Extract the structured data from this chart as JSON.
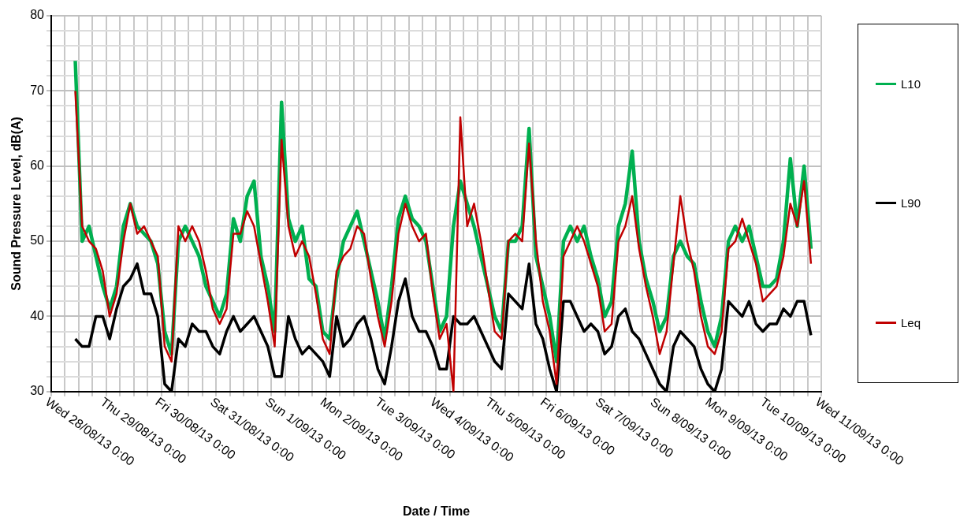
{
  "chart_data": {
    "type": "line",
    "xlabel": "Date / Time",
    "ylabel": "Sound Pressure Level, dB(A)",
    "legend": "right",
    "grid": true,
    "marker": "none",
    "line_style": "solid",
    "xlim": [
      "--08-28T00:00",
      "--09-11T00:00"
    ],
    "xticks": [
      {
        "value": "--08-28T00:00",
        "label": "Wed 28/08/13 0:00"
      },
      {
        "value": "--08-28T06:00",
        "label": null
      },
      {
        "value": "--08-28T12:00",
        "label": null
      },
      {
        "value": "--08-28T18:00",
        "label": null
      },
      {
        "value": "--08-29T00:00",
        "label": "Thu 29/08/13 0:00"
      },
      {
        "value": "--08-29T06:00",
        "label": null
      },
      {
        "value": "--08-29T12:00",
        "label": null
      },
      {
        "value": "--08-29T18:00",
        "label": null
      },
      {
        "value": "--08-30T00:00",
        "label": "Fri 30/08/13 0:00"
      },
      {
        "value": "--08-30T06:00",
        "label": null
      },
      {
        "value": "--08-30T12:00",
        "label": null
      },
      {
        "value": "--08-30T18:00",
        "label": null
      },
      {
        "value": "--08-31T00:00",
        "label": "Sat 31/08/13 0:00"
      },
      {
        "value": "--08-31T06:00",
        "label": null
      },
      {
        "value": "--08-31T12:00",
        "label": null
      },
      {
        "value": "--08-31T18:00",
        "label": null
      },
      {
        "value": "--09-01T00:00",
        "label": "Sun 1/09/13 0:00"
      },
      {
        "value": "--09-01T06:00",
        "label": null
      },
      {
        "value": "--09-01T12:00",
        "label": null
      },
      {
        "value": "--09-01T18:00",
        "label": null
      },
      {
        "value": "--09-02T00:00",
        "label": "Mon 2/09/13 0:00"
      },
      {
        "value": "--09-02T06:00",
        "label": null
      },
      {
        "value": "--09-02T12:00",
        "label": null
      },
      {
        "value": "--09-02T18:00",
        "label": null
      },
      {
        "value": "--09-03T00:00",
        "label": "Tue 3/09/13 0:00"
      },
      {
        "value": "--09-03T06:00",
        "label": null
      },
      {
        "value": "--09-03T12:00",
        "label": null
      },
      {
        "value": "--09-03T18:00",
        "label": null
      },
      {
        "value": "--09-04T00:00",
        "label": "Wed 4/09/13 0:00"
      },
      {
        "value": "--09-04T06:00",
        "label": null
      },
      {
        "value": "--09-04T12:00",
        "label": null
      },
      {
        "value": "--09-04T18:00",
        "label": null
      },
      {
        "value": "--09-05T00:00",
        "label": "Thu 5/09/13 0:00"
      },
      {
        "value": "--09-05T06:00",
        "label": null
      },
      {
        "value": "--09-05T12:00",
        "label": null
      },
      {
        "value": "--09-05T18:00",
        "label": null
      },
      {
        "value": "--09-06T00:00",
        "label": "Fri 6/09/13 0:00"
      },
      {
        "value": "--09-06T06:00",
        "label": null
      },
      {
        "value": "--09-06T12:00",
        "label": null
      },
      {
        "value": "--09-06T18:00",
        "label": null
      },
      {
        "value": "--09-07T00:00",
        "label": "Sat 7/09/13 0:00"
      },
      {
        "value": "--09-07T06:00",
        "label": null
      },
      {
        "value": "--09-07T12:00",
        "label": null
      },
      {
        "value": "--09-07T18:00",
        "label": null
      },
      {
        "value": "--09-08T00:00",
        "label": "Sun 8/09/13 0:00"
      },
      {
        "value": "--09-08T06:00",
        "label": null
      },
      {
        "value": "--09-08T12:00",
        "label": null
      },
      {
        "value": "--09-08T18:00",
        "label": null
      },
      {
        "value": "--09-09T00:00",
        "label": "Mon 9/09/13 0:00"
      },
      {
        "value": "--09-09T06:00",
        "label": null
      },
      {
        "value": "--09-09T12:00",
        "label": null
      },
      {
        "value": "--09-09T18:00",
        "label": null
      },
      {
        "value": "--09-10T00:00",
        "label": "Tue 10/09/13 0:00"
      },
      {
        "value": "--09-10T06:00",
        "label": null
      },
      {
        "value": "--09-10T12:00",
        "label": null
      },
      {
        "value": "--09-10T18:00",
        "label": null
      },
      {
        "value": "--09-11T00:00",
        "label": "Wed 11/09/13 0:00"
      }
    ],
    "ylim": [
      30,
      80
    ],
    "yticks": [
      30,
      {
        "value": 32,
        "label": null
      },
      {
        "value": 34,
        "label": null
      },
      {
        "value": 36,
        "label": null
      },
      {
        "value": 38,
        "label": null
      },
      40,
      {
        "value": 42,
        "label": null
      },
      {
        "value": 44,
        "label": null
      },
      {
        "value": 46,
        "label": null
      },
      {
        "value": 48,
        "label": null
      },
      50,
      {
        "value": 52,
        "label": null
      },
      {
        "value": 54,
        "label": null
      },
      {
        "value": 56,
        "label": null
      },
      {
        "value": 58,
        "label": null
      },
      60,
      {
        "value": 62,
        "label": null
      },
      {
        "value": 64,
        "label": null
      },
      {
        "value": 66,
        "label": null
      },
      {
        "value": 68,
        "label": null
      },
      70,
      {
        "value": 72,
        "label": null
      },
      {
        "value": 74,
        "label": null
      },
      {
        "value": 76,
        "label": null
      },
      {
        "value": 78,
        "label": null
      },
      80
    ],
    "x": [
      "--08-28T10:30",
      "--08-28T13:30",
      "--08-28T16:30",
      "--08-28T19:30",
      "--08-28T22:30",
      "--08-29T01:30",
      "--08-29T04:30",
      "--08-29T07:30",
      "--08-29T10:30",
      "--08-29T13:30",
      "--08-29T16:30",
      "--08-29T19:30",
      "--08-29T22:30",
      "--08-30T01:30",
      "--08-30T04:30",
      "--08-30T07:30",
      "--08-30T10:30",
      "--08-30T13:30",
      "--08-30T16:30",
      "--08-30T19:30",
      "--08-30T22:30",
      "--08-31T01:30",
      "--08-31T04:30",
      "--08-31T07:30",
      "--08-31T10:30",
      "--08-31T13:30",
      "--08-31T16:30",
      "--08-31T19:30",
      "--08-31T22:30",
      "--09-01T01:30",
      "--09-01T04:30",
      "--09-01T07:30",
      "--09-01T10:30",
      "--09-01T13:30",
      "--09-01T16:30",
      "--09-01T19:30",
      "--09-01T22:30",
      "--09-02T01:30",
      "--09-02T04:30",
      "--09-02T07:30",
      "--09-02T10:30",
      "--09-02T13:30",
      "--09-02T16:30",
      "--09-02T19:30",
      "--09-02T22:30",
      "--09-03T01:30",
      "--09-03T04:30",
      "--09-03T07:30",
      "--09-03T10:30",
      "--09-03T13:30",
      "--09-03T16:30",
      "--09-03T19:30",
      "--09-03T22:30",
      "--09-04T01:30",
      "--09-04T04:30",
      "--09-04T07:30",
      "--09-04T10:30",
      "--09-04T13:30",
      "--09-04T16:30",
      "--09-04T19:30",
      "--09-04T22:30",
      "--09-05T01:30",
      "--09-05T04:30",
      "--09-05T07:30",
      "--09-05T10:30",
      "--09-05T13:30",
      "--09-05T16:30",
      "--09-05T19:30",
      "--09-05T22:30",
      "--09-06T01:30",
      "--09-06T04:30",
      "--09-06T07:30",
      "--09-06T10:30",
      "--09-06T13:30",
      "--09-06T16:30",
      "--09-06T19:30",
      "--09-06T22:30",
      "--09-07T01:30",
      "--09-07T04:30",
      "--09-07T07:30",
      "--09-07T10:30",
      "--09-07T13:30",
      "--09-07T16:30",
      "--09-07T19:30",
      "--09-07T22:30",
      "--09-08T01:30",
      "--09-08T04:30",
      "--09-08T07:30",
      "--09-08T10:30",
      "--09-08T13:30",
      "--09-08T16:30",
      "--09-08T19:30",
      "--09-08T22:30",
      "--09-09T01:30",
      "--09-09T04:30",
      "--09-09T07:30",
      "--09-09T10:30",
      "--09-09T13:30",
      "--09-09T16:30",
      "--09-09T19:30",
      "--09-09T22:30",
      "--09-10T01:30",
      "--09-10T04:30",
      "--09-10T07:30",
      "--09-10T10:30",
      "--09-10T13:30",
      "--09-10T16:30",
      "--09-10T19:30"
    ],
    "series": [
      {
        "name": "L10",
        "color": "#00b050",
        "values": [
          74,
          50,
          52,
          48,
          44,
          41,
          44,
          52,
          55,
          52,
          51,
          50,
          47,
          38,
          35,
          50,
          52,
          50,
          48,
          44,
          42,
          40,
          43,
          53,
          50,
          56,
          58,
          48,
          44,
          38,
          68.5,
          53,
          50,
          52,
          45,
          44,
          38,
          37,
          45,
          50,
          52,
          54,
          50,
          46,
          42,
          37,
          44,
          53,
          56,
          53,
          52,
          50,
          44,
          38,
          40,
          52,
          58,
          55,
          52,
          48,
          44,
          40,
          38,
          50,
          50,
          52,
          65,
          48,
          44,
          40,
          34,
          50,
          52,
          50,
          52,
          48,
          45,
          40,
          42,
          52,
          55,
          62,
          50,
          45,
          42,
          38,
          40,
          48,
          50,
          48,
          47,
          42,
          38,
          36,
          40,
          50,
          52,
          50,
          52,
          48,
          44,
          44,
          45,
          50,
          61,
          52,
          60,
          49
        ]
      },
      {
        "name": "L90",
        "color": "#000000",
        "values": [
          37,
          36,
          36,
          40,
          40,
          37,
          41,
          44,
          45,
          47,
          43,
          43,
          40,
          31,
          30,
          37,
          36,
          39,
          38,
          38,
          36,
          35,
          38,
          40,
          38,
          39,
          40,
          38,
          36,
          32,
          32,
          40,
          37,
          35,
          36,
          35,
          34,
          32,
          40,
          36,
          37,
          39,
          40,
          37,
          33,
          31,
          36,
          42,
          45,
          40,
          38,
          38,
          36,
          33,
          33,
          40,
          39,
          39,
          40,
          38,
          36,
          34,
          33,
          43,
          42,
          41,
          47,
          39,
          37,
          33,
          30,
          42,
          42,
          40,
          38,
          39,
          38,
          35,
          36,
          40,
          41,
          38,
          37,
          35,
          33,
          31,
          30,
          36,
          38,
          37,
          36,
          33,
          31,
          30,
          33,
          42,
          41,
          40,
          42,
          39,
          38,
          39,
          39,
          41,
          40,
          42,
          42,
          37.5
        ]
      },
      {
        "name": "Leq",
        "color": "#c00000",
        "values": [
          70,
          52,
          50,
          49,
          46,
          40,
          43,
          50,
          55,
          51,
          52,
          50,
          48,
          36,
          34,
          52,
          50,
          52,
          50,
          46,
          41,
          39,
          41,
          51,
          51,
          54,
          52,
          47,
          42,
          36,
          63.5,
          52,
          48,
          50,
          48,
          43,
          37,
          35,
          46,
          48,
          49,
          52,
          51,
          45,
          40,
          36,
          42,
          51,
          55,
          52,
          50,
          51,
          43,
          37,
          39,
          30,
          66.5,
          52,
          55,
          50,
          44,
          38,
          37,
          50,
          51,
          50,
          63,
          50,
          42,
          38,
          31,
          48,
          50,
          52,
          50,
          47,
          44,
          38,
          39,
          50,
          52,
          56,
          49,
          44,
          40,
          35,
          38,
          47,
          56,
          50,
          46,
          40,
          36,
          35,
          38,
          49,
          50,
          53,
          50,
          47,
          42,
          43,
          44,
          48,
          55,
          52,
          58,
          47
        ]
      }
    ]
  }
}
